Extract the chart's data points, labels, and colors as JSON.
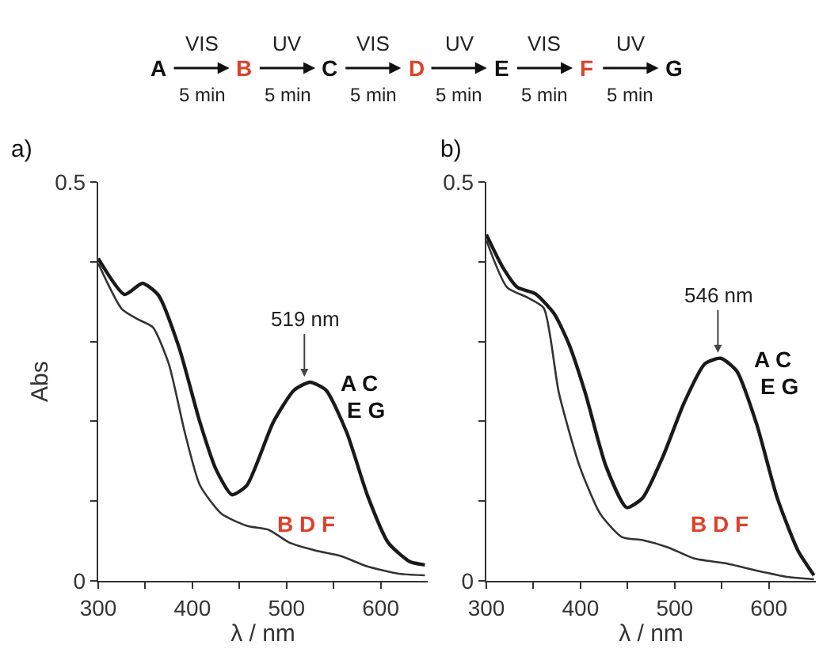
{
  "chart_data": [
    {
      "type": "other",
      "annotations": [
        "A",
        "VIS",
        "5 min",
        "B",
        "UV",
        "5 min",
        "C",
        "VIS",
        "5 min",
        "D",
        "UV",
        "5 min",
        "E",
        "VIS",
        "5 min",
        "F",
        "UV",
        "5 min",
        "G"
      ]
    },
    {
      "type": "line",
      "title": "a)",
      "xlabel": "λ / nm",
      "ylabel": "Abs",
      "xlim": [
        300,
        650
      ],
      "ylim": [
        0,
        0.5
      ],
      "xticks": [
        300,
        {
          "value": 350,
          "label": null
        },
        400,
        {
          "value": 450,
          "label": null
        },
        500,
        {
          "value": 550,
          "label": null
        },
        600
      ],
      "yticks": [
        0,
        {
          "value": 0.1,
          "label": null
        },
        {
          "value": 0.2,
          "label": null
        },
        {
          "value": 0.3,
          "label": null
        },
        {
          "value": 0.4,
          "label": null
        },
        0.5
      ],
      "series": [
        {
          "color": "#1a1a1a",
          "x": [
            300,
            328,
            347,
            364,
            386,
            408,
            425,
            442,
            458,
            486,
            508,
            525,
            542,
            564,
            586,
            608,
            631,
            647
          ],
          "values": [
            0.404,
            0.359,
            0.373,
            0.358,
            0.292,
            0.199,
            0.14,
            0.108,
            0.12,
            0.199,
            0.239,
            0.249,
            0.239,
            0.186,
            0.107,
            0.048,
            0.024,
            0.02
          ]
        },
        {
          "color": "#333333",
          "x": [
            300,
            325,
            342,
            358,
            375,
            392,
            408,
            431,
            458,
            481,
            503,
            531,
            558,
            586,
            619,
            647
          ],
          "values": [
            0.398,
            0.341,
            0.328,
            0.318,
            0.272,
            0.186,
            0.12,
            0.084,
            0.069,
            0.064,
            0.048,
            0.038,
            0.031,
            0.018,
            0.009,
            0.007
          ]
        }
      ],
      "annotations": [
        {
          "text": "519 nm",
          "x": 519,
          "y": 0.252
        },
        "A C",
        "E G",
        "B D F"
      ]
    },
    {
      "type": "line",
      "title": "b)",
      "xlabel": "λ / nm",
      "xlim": [
        300,
        650
      ],
      "ylim": [
        0,
        0.5
      ],
      "xticks": [
        300,
        {
          "value": 350,
          "label": null
        },
        400,
        {
          "value": 450,
          "label": null
        },
        500,
        {
          "value": 550,
          "label": null
        },
        600
      ],
      "yticks": [
        0,
        {
          "value": 0.1,
          "label": null
        },
        {
          "value": 0.2,
          "label": null
        },
        {
          "value": 0.3,
          "label": null
        },
        {
          "value": 0.4,
          "label": null
        },
        0.5
      ],
      "series": [
        {
          "color": "#1a1a1a",
          "x": [
            300,
            317,
            333,
            352,
            372,
            388,
            405,
            427,
            449,
            466,
            488,
            510,
            532,
            549,
            566,
            587,
            609,
            631,
            648
          ],
          "values": [
            0.434,
            0.394,
            0.368,
            0.36,
            0.335,
            0.296,
            0.236,
            0.144,
            0.092,
            0.104,
            0.157,
            0.223,
            0.272,
            0.279,
            0.263,
            0.197,
            0.104,
            0.038,
            0.007
          ]
        },
        {
          "color": "#333333",
          "x": [
            300,
            322,
            344,
            361,
            377,
            399,
            421,
            444,
            466,
            493,
            521,
            554,
            587,
            620,
            648
          ],
          "values": [
            0.427,
            0.368,
            0.355,
            0.342,
            0.236,
            0.144,
            0.084,
            0.055,
            0.051,
            0.042,
            0.028,
            0.022,
            0.013,
            0.005,
            0.002
          ]
        }
      ],
      "annotations": [
        {
          "text": "546 nm",
          "x": 546,
          "y": 0.282
        },
        "A C",
        "E G",
        "B D F"
      ]
    }
  ]
}
